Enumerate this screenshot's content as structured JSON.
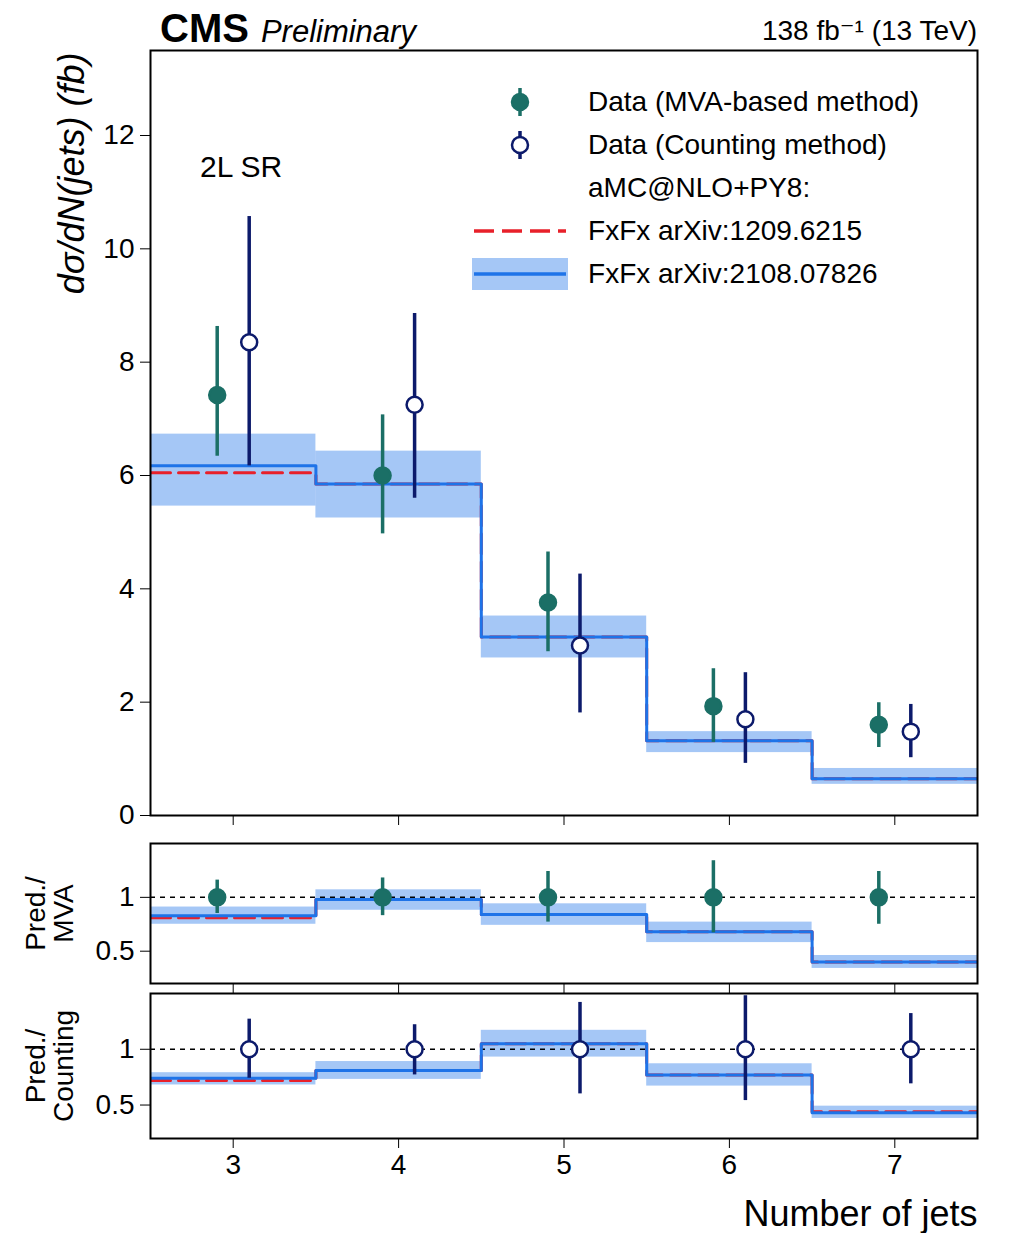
{
  "chart_data": [
    {
      "type": "errorbar_step",
      "title": "CMS",
      "subtitle": "Preliminary",
      "right_title": "138 fb⁻¹ (13 TeV)",
      "annotation": "2L SR",
      "y_label": "dσ/dN(jets) (fb)",
      "x": [
        3,
        4,
        5,
        6,
        7
      ],
      "bins": [
        2.5,
        3.5,
        4.5,
        5.5,
        6.5,
        7.5
      ],
      "xlim": [
        2.5,
        7.5
      ],
      "xticks": [
        3,
        4,
        5,
        6,
        7
      ],
      "ylim": [
        0,
        13.5
      ],
      "yticks": [
        0,
        2,
        4,
        6,
        8,
        10,
        12
      ],
      "tick_labels": "y",
      "legend": "top-right",
      "legend_header": "aMC@NLO+PY8:",
      "series": [
        {
          "name": "Data (MVA-based method)",
          "type": "errorbar",
          "color": "#1b6f66",
          "marker": "circle",
          "values": [
            7.42,
            6.0,
            3.76,
            1.93,
            1.6
          ],
          "lower": [
            6.34,
            4.97,
            2.89,
            1.29,
            1.2
          ],
          "upper": [
            8.63,
            7.07,
            4.65,
            2.59,
            1.99
          ]
        },
        {
          "name": "Data (Counting method)",
          "type": "errorbar",
          "color": "#0c1a6b",
          "marker": "open_circle",
          "values": [
            8.35,
            7.25,
            3.0,
            1.7,
            1.48
          ],
          "lower": [
            6.17,
            5.6,
            1.81,
            0.92,
            1.02
          ],
          "upper": [
            10.57,
            8.86,
            4.26,
            2.52,
            1.96
          ]
        },
        {
          "name": "FxFx arXiv:1209.6215",
          "type": "step",
          "color": "#e8202a",
          "line_style": "dashed",
          "values": [
            6.05,
            5.85,
            3.15,
            1.32,
            0.65
          ]
        },
        {
          "name": "FxFx arXiv:2108.07826",
          "type": "step",
          "color": "#1e73e8",
          "line_style": "solid",
          "values": [
            6.17,
            5.85,
            3.15,
            1.32,
            0.65
          ],
          "band_low": [
            5.46,
            5.25,
            2.78,
            1.11,
            0.55
          ],
          "band_high": [
            6.73,
            6.43,
            3.52,
            1.48,
            0.83
          ]
        }
      ]
    },
    {
      "type": "errorbar_step",
      "y_label": [
        "Pred./",
        "MVA"
      ],
      "x": [
        3,
        4,
        5,
        6,
        7
      ],
      "bins": [
        2.5,
        3.5,
        4.5,
        5.5,
        6.5,
        7.5
      ],
      "xlim": [
        2.5,
        7.5
      ],
      "xticks": [
        3,
        4,
        5,
        6,
        7
      ],
      "ylim": [
        0.2,
        1.5
      ],
      "yticks": [
        0.5,
        1
      ],
      "tick_labels": "y",
      "reference_line": 1,
      "series": [
        {
          "type": "errorbar",
          "color": "#1b6f66",
          "marker": "circle",
          "values": [
            1,
            1,
            1,
            1,
            1
          ],
          "lower": [
            0.85,
            0.83,
            0.77,
            0.67,
            0.75
          ],
          "upper": [
            1.16,
            1.18,
            1.24,
            1.34,
            1.24
          ]
        },
        {
          "type": "step",
          "color": "#e8202a",
          "line_style": "dashed",
          "values": [
            0.81,
            0.98,
            0.84,
            0.68,
            0.4
          ]
        },
        {
          "type": "step",
          "color": "#1e73e8",
          "line_style": "solid",
          "values": [
            0.83,
            0.98,
            0.84,
            0.68,
            0.4
          ],
          "band_low": [
            0.75,
            0.88,
            0.74,
            0.58,
            0.34
          ],
          "band_high": [
            0.91,
            1.07,
            0.94,
            0.77,
            0.46
          ]
        }
      ]
    },
    {
      "type": "errorbar_step",
      "y_label": [
        "Pred./",
        "Counting"
      ],
      "x_label": "Number of jets",
      "x": [
        3,
        4,
        5,
        6,
        7
      ],
      "bins": [
        2.5,
        3.5,
        4.5,
        5.5,
        6.5,
        7.5
      ],
      "xlim": [
        2.5,
        7.5
      ],
      "xticks": [
        3,
        4,
        5,
        6,
        7
      ],
      "ylim": [
        0.2,
        1.5
      ],
      "yticks": [
        0.5,
        1
      ],
      "reference_line": 1,
      "series": [
        {
          "type": "errorbar",
          "color": "#0c1a6b",
          "marker": "open_circle",
          "values": [
            1,
            1,
            1,
            1,
            1
          ],
          "lower": [
            0.74,
            0.77,
            0.6,
            0.54,
            0.69
          ],
          "upper": [
            1.27,
            1.22,
            1.42,
            1.48,
            1.32
          ]
        },
        {
          "type": "step",
          "color": "#e8202a",
          "line_style": "dashed",
          "values": [
            0.72,
            0.81,
            1.05,
            0.77,
            0.44
          ]
        },
        {
          "type": "step",
          "color": "#1e73e8",
          "line_style": "solid",
          "values": [
            0.74,
            0.81,
            1.05,
            0.77,
            0.43
          ],
          "band_low": [
            0.68,
            0.73,
            0.93,
            0.67,
            0.38
          ],
          "band_high": [
            0.79,
            0.89,
            1.17,
            0.87,
            0.49
          ]
        }
      ]
    }
  ]
}
